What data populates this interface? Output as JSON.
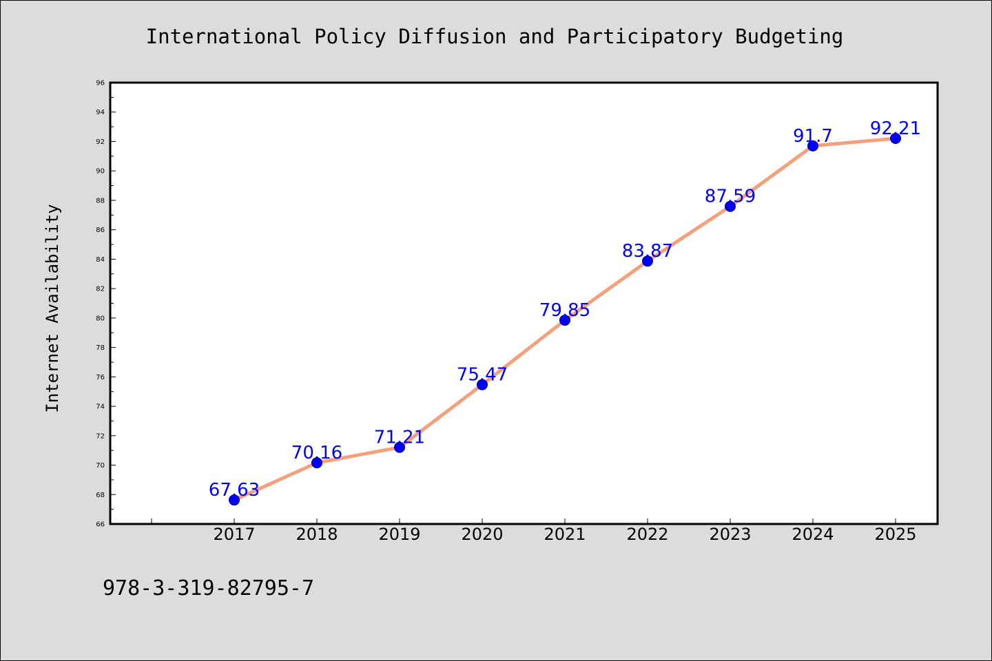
{
  "chart_data": {
    "type": "line",
    "title": "International Policy Diffusion and Participatory Budgeting",
    "xlabel": "",
    "ylabel": "Internet Availability",
    "categories": [
      "2017",
      "2018",
      "2019",
      "2020",
      "2021",
      "2022",
      "2023",
      "2024",
      "2025"
    ],
    "series": [
      {
        "values": [
          67.63,
          70.16,
          71.21,
          75.47,
          79.85,
          83.87,
          87.59,
          91.7,
          92.21
        ],
        "labels": [
          "67.63",
          "70.16",
          "71.21",
          "75.47",
          "79.85",
          "83.87",
          "87.59",
          "91.7",
          "92.21"
        ],
        "color": "#f4a07a",
        "marker_color": "#0000ff"
      }
    ],
    "ylim": [
      66,
      96
    ],
    "yticks": [
      "66",
      "68",
      "70",
      "72",
      "74",
      "76",
      "78",
      "80",
      "82",
      "84",
      "86",
      "88",
      "90",
      "92",
      "94",
      "96"
    ],
    "grid": false,
    "legend": "none",
    "label_color": "#0000ff"
  },
  "annotation": {
    "text": "978-3-319-82795-7"
  },
  "colors": {
    "background": "#dcdcdc",
    "plot_background": "#ffffff"
  }
}
